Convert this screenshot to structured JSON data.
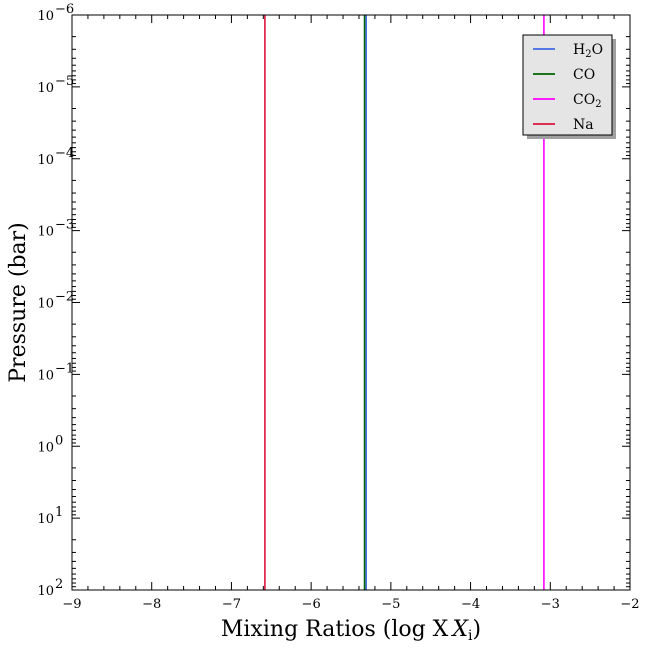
{
  "chart_data": {
    "type": "line",
    "xlabel": "Mixing Ratios (log X",
    "xlabel_sub": "i",
    "xlabel_close": ")",
    "ylabel": "Pressure (bar)",
    "xlim": [
      -9,
      -2
    ],
    "ylim_log10": [
      2,
      -6
    ],
    "y_scale": "log",
    "y_inverted": true,
    "x_ticks": [
      -9,
      -8,
      -7,
      -6,
      -5,
      -4,
      -3,
      -2
    ],
    "x_tick_labels": [
      "−9",
      "−8",
      "−7",
      "−6",
      "−5",
      "−4",
      "−3",
      "−2"
    ],
    "y_ticks_exp": [
      -6,
      -5,
      -4,
      -3,
      -2,
      -1,
      0,
      1,
      2
    ],
    "y_tick_labels": [
      "−6",
      "−5",
      "−4",
      "−3",
      "−2",
      "−1",
      "0",
      "1",
      "2"
    ],
    "y_tick_base": "10",
    "legend_position": "top-right",
    "series": [
      {
        "name": "H",
        "name_sub": "2",
        "name_tail": "O",
        "color": "#4169e1",
        "x": -5.31
      },
      {
        "name": "CO",
        "name_sub": "",
        "name_tail": "",
        "color": "#006400",
        "x": -5.33
      },
      {
        "name": "CO",
        "name_sub": "2",
        "name_tail": "",
        "color": "#ff00ff",
        "x": -3.08
      },
      {
        "name": "Na",
        "name_sub": "",
        "name_tail": "",
        "color": "#dc143c",
        "x": -6.58
      }
    ]
  }
}
